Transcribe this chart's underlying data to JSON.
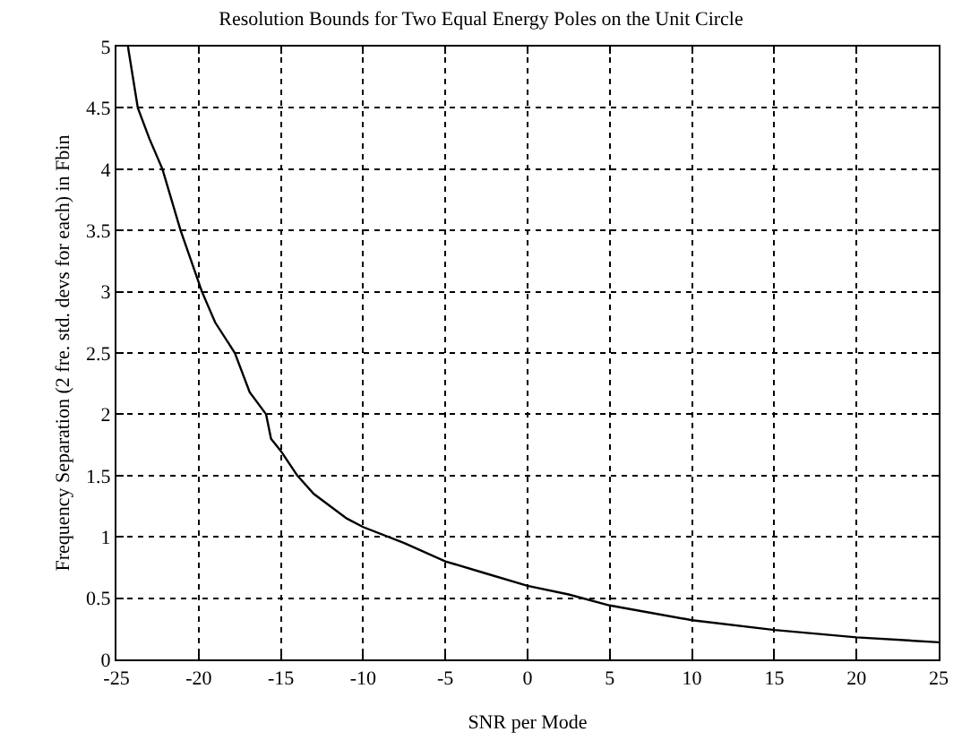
{
  "chart_data": {
    "type": "line",
    "title": "Resolution Bounds for Two Equal Energy Poles on the Unit Circle",
    "xlabel": "SNR per Mode",
    "ylabel": "Frequency Separation (2 fre. std. devs for each) in Fbin",
    "x": [
      -24.3,
      -23.7,
      -23,
      -22.2,
      -21.1,
      -19.8,
      -19,
      -17.8,
      -16.9,
      -15.9,
      -15.6,
      -15,
      -14,
      -13,
      -12,
      -11,
      -10,
      -7.5,
      -5,
      -2.5,
      0,
      2.5,
      5,
      10,
      15,
      20,
      25
    ],
    "series": [
      {
        "color": "#000000",
        "values": [
          5,
          4.5,
          4.25,
          4.0,
          3.5,
          3.0,
          2.75,
          2.5,
          2.18,
          2.0,
          1.8,
          1.7,
          1.5,
          1.35,
          1.25,
          1.15,
          1.08,
          0.95,
          0.8,
          0.7,
          0.6,
          0.53,
          0.44,
          0.32,
          0.24,
          0.18,
          0.14
        ]
      }
    ],
    "xlim": [
      -25,
      25
    ],
    "xticks": [
      -25,
      -20,
      -15,
      -10,
      -5,
      0,
      5,
      10,
      15,
      20,
      25
    ],
    "ylim": [
      0,
      5
    ],
    "yticks": [
      0,
      0.5,
      1,
      1.5,
      2,
      2.5,
      3,
      3.5,
      4,
      4.5,
      5
    ],
    "grid": true,
    "marker": "none",
    "line_style": "solid"
  }
}
